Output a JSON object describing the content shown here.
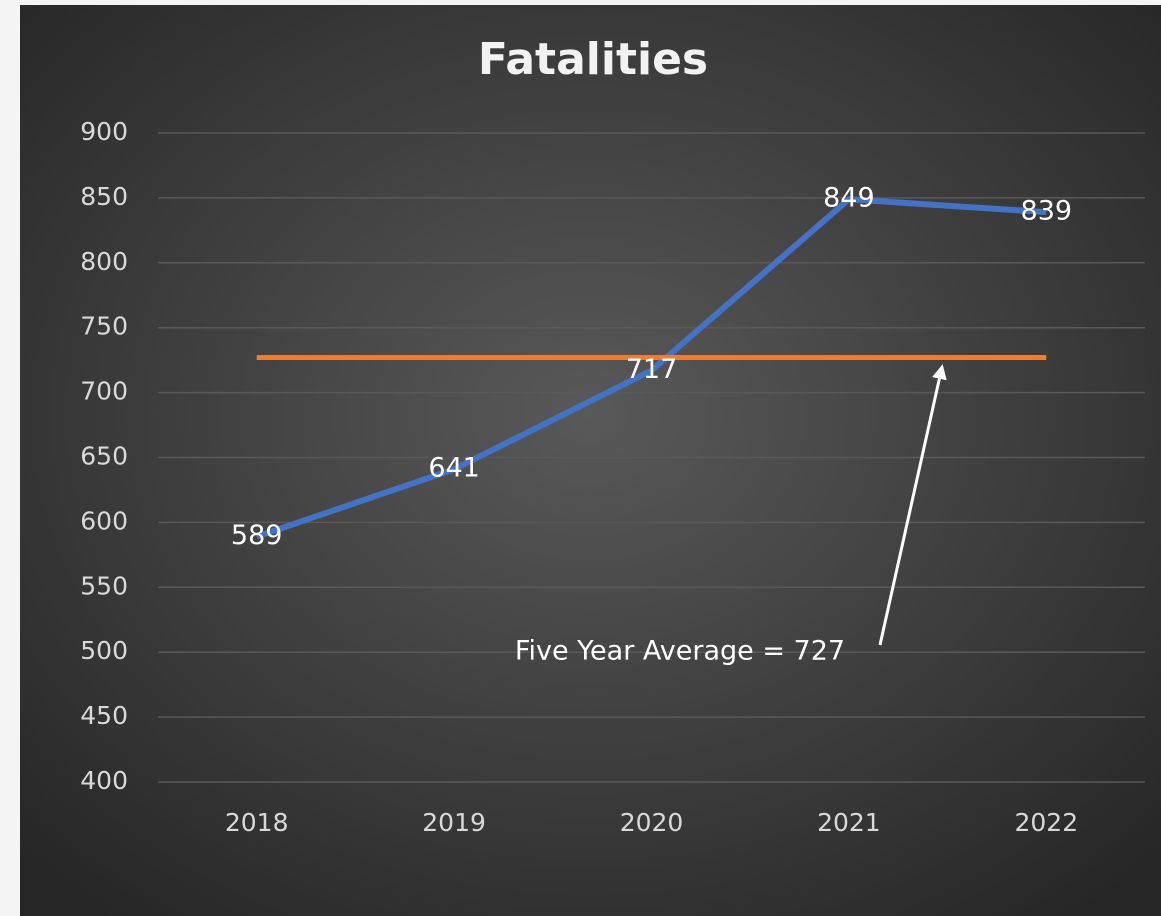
{
  "chart_data": {
    "type": "line",
    "title": "Fatalities",
    "categories": [
      "2018",
      "2019",
      "2020",
      "2021",
      "2022"
    ],
    "series": [
      {
        "color": "#4472c4",
        "values": [
          589,
          641,
          717,
          849,
          839
        ],
        "data_labels": true
      },
      {
        "color": "#ed7d31",
        "values": [
          727,
          727,
          727,
          727,
          727
        ],
        "data_labels": false
      }
    ],
    "annotation": "Five Year Average = 727",
    "ylim": [
      400,
      900
    ],
    "yticks": [
      400,
      450,
      500,
      550,
      600,
      650,
      700,
      750,
      800,
      850,
      900
    ],
    "grid": true
  }
}
